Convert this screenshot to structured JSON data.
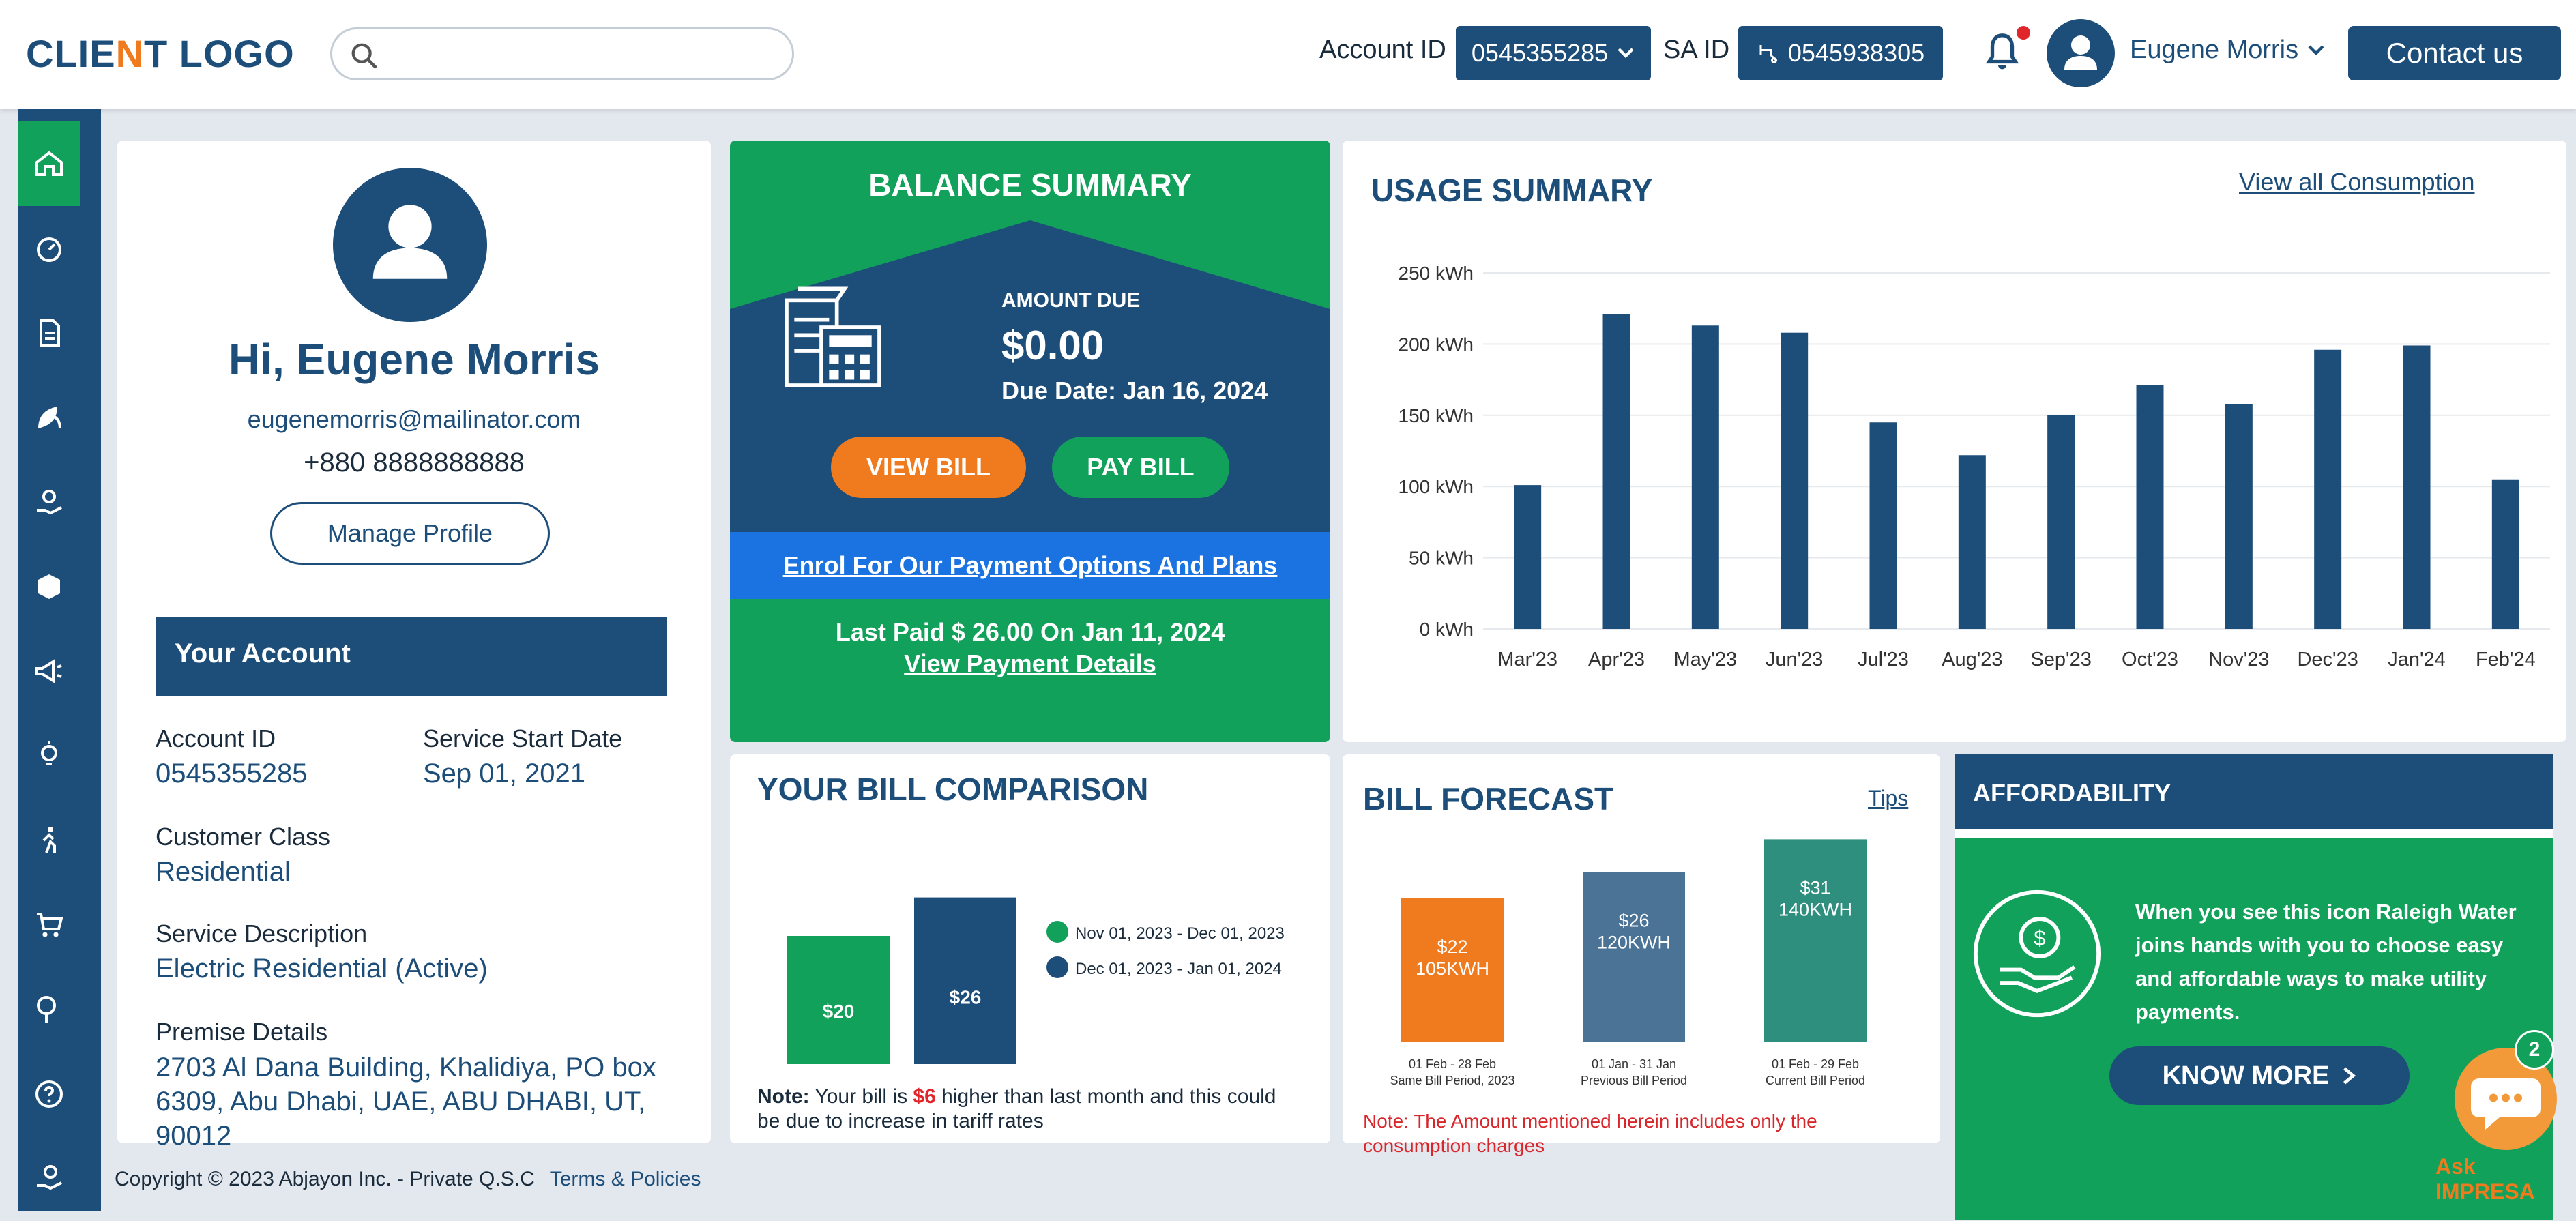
{
  "header": {
    "logo_a": "CLIE",
    "logo_b": "N",
    "logo_c": "T LOGO",
    "search_placeholder": "",
    "account_id_label": "Account ID",
    "account_id_value": "0545355285",
    "sa_id_label": "SA ID",
    "sa_id_value": "0545938305",
    "user_name": "Eugene Morris",
    "contact_label": "Contact us"
  },
  "sidebar": {
    "items": [
      "home-icon",
      "dashboard-icon",
      "bill-icon",
      "leaf-icon",
      "hand-sun-icon",
      "box-icon",
      "megaphone-icon",
      "bulb-icon",
      "walk-icon",
      "cart-icon",
      "meter-icon",
      "help-icon",
      "hand-coin-icon"
    ],
    "active_index": 0
  },
  "profile": {
    "greeting": "Hi, Eugene Morris",
    "email": "eugenemorris@mailinator.com",
    "phone": "+880 8888888888",
    "manage_label": "Manage Profile",
    "your_account_title": "Your Account",
    "account_id_label": "Account ID",
    "account_id_value": "0545355285",
    "service_start_label": "Service Start Date",
    "service_start_value": "Sep 01, 2021",
    "customer_class_label": "Customer Class",
    "customer_class_value": "Residential",
    "service_desc_label": "Service Description",
    "service_desc_value": "Electric Residential (Active)",
    "premise_label": "Premise Details",
    "premise_value": "2703 Al Dana Building, Khalidiya, PO box 6309, Abu Dhabi, UAE, ABU DHABI, UT, 90012"
  },
  "balance": {
    "title": "BALANCE SUMMARY",
    "amount_label": "AMOUNT DUE",
    "amount": "$0.00",
    "due_date": "Due Date: Jan 16, 2024",
    "view_bill": "VIEW BILL",
    "pay_bill": "PAY BILL",
    "enrol": "Enrol For Our Payment Options And Plans",
    "last_paid": "Last Paid $ 26.00 On Jan 11, 2024",
    "view_payment": "View Payment Details"
  },
  "usage": {
    "title": "USAGE SUMMARY",
    "view_all": "View all Consumption"
  },
  "chart_data": [
    {
      "type": "bar",
      "categories": [
        "Mar'23",
        "Apr'23",
        "May'23",
        "Jun'23",
        "Jul'23",
        "Aug'23",
        "Sep'23",
        "Oct'23",
        "Nov'23",
        "Dec'23",
        "Jan'24",
        "Feb'24"
      ],
      "values": [
        101,
        221,
        213,
        208,
        145,
        122,
        150,
        171,
        158,
        196,
        199,
        105
      ],
      "ylim": [
        0,
        250
      ],
      "yticks": [
        "0 kWh",
        "50 kWh",
        "100 kWh",
        "150 kWh",
        "200 kWh",
        "250 kWh"
      ],
      "color": "#1d4e7a",
      "grid": true
    },
    {
      "type": "bar",
      "title": "YOUR BILL COMPARISON",
      "categories": [
        "Nov 01, 2023 - Dec 01, 2023",
        "Dec 01, 2023 - Jan 01, 2024"
      ],
      "values": [
        20,
        26
      ],
      "labels": [
        "$20",
        "$26"
      ],
      "colors": [
        "#12a15a",
        "#1d4e7a"
      ],
      "legend_position": "right"
    },
    {
      "type": "bar",
      "title": "BILL FORECAST",
      "categories": [
        "01 Feb - 28 Feb",
        "01 Jan - 31 Jan",
        "01 Feb - 29 Feb"
      ],
      "sublabels": [
        "Same Bill Period, 2023",
        "Previous Bill Period",
        "Current Bill Period"
      ],
      "values": [
        22,
        26,
        31
      ],
      "kwh": [
        105,
        120,
        140
      ],
      "labels": [
        "$22",
        "$26",
        "$31"
      ],
      "sub": [
        "105KWH",
        "120KWH",
        "140KWH"
      ],
      "colors": [
        "#f07a1e",
        "#4b7396",
        "#2f8f7e"
      ]
    }
  ],
  "comparison": {
    "note_prefix": "Note:",
    "note_a": " Your bill is ",
    "note_amt": "$6",
    "note_b": " higher than last month and this could be due to increase in tariff rates"
  },
  "forecast": {
    "tips": "Tips",
    "note": "Note: The Amount mentioned herein includes only the consumption charges"
  },
  "affordability": {
    "title": "AFFORDABILITY",
    "text": "When you see this icon Raleigh Water joins hands with you to choose easy and affordable ways to make utility payments.",
    "know_more": "KNOW MORE"
  },
  "footer": {
    "copyright": "Copyright © 2023 Abjayon Inc. - Private Q.S.C",
    "terms": "Terms & Policies"
  },
  "chat": {
    "badge": "2",
    "label": "Ask IMPRESA"
  }
}
